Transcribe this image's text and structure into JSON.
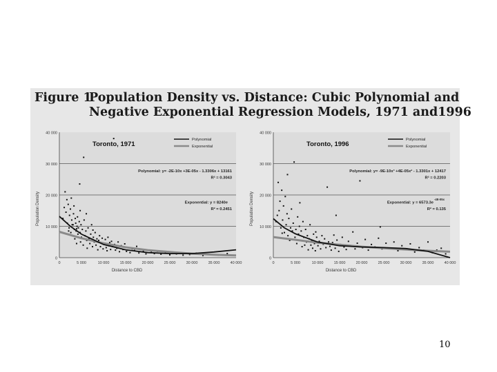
{
  "figure": {
    "label": "Figure 1",
    "title_line1": "Population Density vs. Distance: Cubic Polynomial and",
    "title_line2": "Negative Exponential Regression Models, 1971 and1996"
  },
  "slide_number": "10",
  "colors": {
    "panel_bg": "#e7e7e7",
    "plot_bg": "#dcdcdc",
    "points": "#111111",
    "polynomial_line": "#111111",
    "exponential_line": "#8a8a8a"
  },
  "chart_data": [
    {
      "type": "scatter",
      "title": "Toronto, 1971",
      "xlabel": "Distance to CBD",
      "ylabel": "Population Density",
      "xlim": [
        0,
        40000
      ],
      "ylim": [
        0,
        40000
      ],
      "x_ticks": [
        "0",
        "5 000",
        "10 000",
        "15 000",
        "20 000",
        "25 000",
        "30 000",
        "35 000",
        "40 000"
      ],
      "y_ticks": [
        "0",
        "10 000",
        "20 000",
        "30 000",
        "40 000"
      ],
      "ref_lines_y": [
        10000,
        20000,
        30000
      ],
      "legend": [
        "Polynomial",
        "Exponential"
      ],
      "legend_position": "top-right",
      "polynomial_equation": "Polynomial: y= -2E-10x +3E-05x - 1.3306x + 13161",
      "polynomial_r2": "R² = 0.3043",
      "exponential_equation": "Exponential: y = 8240e",
      "exponential_r2": "R² = 0.2451",
      "polynomial_curve": [
        [
          0,
          13161
        ],
        [
          2500,
          10000
        ],
        [
          5000,
          7500
        ],
        [
          10000,
          4200
        ],
        [
          15000,
          2500
        ],
        [
          20000,
          1600
        ],
        [
          25000,
          1300
        ],
        [
          30000,
          1300
        ],
        [
          35000,
          1800
        ],
        [
          40000,
          2500
        ]
      ],
      "exponential_curve": [
        [
          0,
          8240
        ],
        [
          5000,
          6200
        ],
        [
          10000,
          4600
        ],
        [
          15000,
          3300
        ],
        [
          20000,
          2400
        ],
        [
          25000,
          1800
        ],
        [
          30000,
          1300
        ],
        [
          35000,
          950
        ],
        [
          40000,
          700
        ]
      ],
      "points": [
        [
          800,
          12500
        ],
        [
          1100,
          16000
        ],
        [
          1300,
          21000
        ],
        [
          1500,
          14500
        ],
        [
          1700,
          18500
        ],
        [
          1800,
          11000
        ],
        [
          2000,
          17000
        ],
        [
          2200,
          9500
        ],
        [
          2300,
          13500
        ],
        [
          2500,
          15500
        ],
        [
          2600,
          8000
        ],
        [
          2700,
          19000
        ],
        [
          2800,
          12000
        ],
        [
          3000,
          7000
        ],
        [
          3100,
          10500
        ],
        [
          3200,
          14000
        ],
        [
          3300,
          16500
        ],
        [
          3400,
          9000
        ],
        [
          3500,
          6000
        ],
        [
          3600,
          12500
        ],
        [
          3700,
          11000
        ],
        [
          3800,
          8500
        ],
        [
          3900,
          4500
        ],
        [
          4000,
          10000
        ],
        [
          4100,
          13000
        ],
        [
          4200,
          7500
        ],
        [
          4300,
          9500
        ],
        [
          4400,
          6500
        ],
        [
          4500,
          11500
        ],
        [
          4600,
          23500
        ],
        [
          4700,
          8000
        ],
        [
          4800,
          5000
        ],
        [
          4900,
          10500
        ],
        [
          5000,
          6500
        ],
        [
          5200,
          9000
        ],
        [
          5400,
          4000
        ],
        [
          5600,
          12000
        ],
        [
          5800,
          7000
        ],
        [
          6000,
          8500
        ],
        [
          6200,
          5500
        ],
        [
          6300,
          3000
        ],
        [
          6500,
          9500
        ],
        [
          6700,
          6000
        ],
        [
          6900,
          4500
        ],
        [
          7100,
          7500
        ],
        [
          7300,
          10500
        ],
        [
          7500,
          3500
        ],
        [
          7700,
          6500
        ],
        [
          7900,
          5000
        ],
        [
          8100,
          8000
        ],
        [
          8300,
          4000
        ],
        [
          8500,
          6000
        ],
        [
          8700,
          2500
        ],
        [
          8900,
          5500
        ],
        [
          9100,
          7000
        ],
        [
          9300,
          3500
        ],
        [
          9500,
          4800
        ],
        [
          9700,
          6200
        ],
        [
          9900,
          2800
        ],
        [
          10200,
          4500
        ],
        [
          10400,
          5800
        ],
        [
          10600,
          3200
        ],
        [
          10800,
          2200
        ],
        [
          11000,
          6500
        ],
        [
          11200,
          3800
        ],
        [
          11400,
          4800
        ],
        [
          11600,
          2600
        ],
        [
          11800,
          5200
        ],
        [
          12000,
          3600
        ],
        [
          12300,
          38000
        ],
        [
          12500,
          4200
        ],
        [
          12700,
          2400
        ],
        [
          13000,
          3000
        ],
        [
          13300,
          5000
        ],
        [
          13600,
          1900
        ],
        [
          14000,
          3800
        ],
        [
          14400,
          2600
        ],
        [
          14800,
          4400
        ],
        [
          15200,
          2000
        ],
        [
          15600,
          3200
        ],
        [
          16000,
          1600
        ],
        [
          16500,
          2800
        ],
        [
          17000,
          2300
        ],
        [
          17500,
          3600
        ],
        [
          18000,
          1500
        ],
        [
          18500,
          2600
        ],
        [
          19000,
          2000
        ],
        [
          19600,
          1200
        ],
        [
          20200,
          2400
        ],
        [
          20800,
          1700
        ],
        [
          21500,
          1300
        ],
        [
          22200,
          2000
        ],
        [
          23000,
          1100
        ],
        [
          24000,
          1500
        ],
        [
          25000,
          900
        ],
        [
          26500,
          1200
        ],
        [
          28000,
          800
        ],
        [
          29500,
          1000
        ],
        [
          31000,
          1400
        ],
        [
          32500,
          700
        ],
        [
          34000,
          1000
        ],
        [
          36000,
          800
        ],
        [
          38000,
          1300
        ],
        [
          5500,
          32000
        ],
        [
          2100,
          8500
        ],
        [
          6100,
          14000
        ],
        [
          3900,
          9200
        ],
        [
          7600,
          8800
        ],
        [
          4700,
          15000
        ],
        [
          2900,
          10500
        ]
      ]
    },
    {
      "type": "scatter",
      "title": "Toronto, 1996",
      "xlabel": "Distance to CBD",
      "ylabel": "Population Density",
      "xlim": [
        0,
        40000
      ],
      "ylim": [
        0,
        40000
      ],
      "x_ticks": [
        "0",
        "5 000",
        "10 000",
        "15 000",
        "20 000",
        "25 000",
        "30 000",
        "35 000",
        "40 000"
      ],
      "y_ticks": [
        "0",
        "10 000",
        "20 000",
        "30 000",
        "40 000"
      ],
      "ref_lines_y": [
        10000,
        20000,
        30000
      ],
      "legend": [
        "Polynomial",
        "Exponential"
      ],
      "legend_position": "top-right",
      "polynomial_equation": "Polynomial: y= -9E-10x³ +4E-05x² - 1.3301x + 12417",
      "polynomial_r2": "R² = 0.2203",
      "exponential_equation": "Exponential: y = 6573.3e",
      "exponential_exponent": "-4E-05x",
      "exponential_r2": "R² = 0.135",
      "polynomial_curve": [
        [
          0,
          12417
        ],
        [
          2500,
          9500
        ],
        [
          5000,
          7600
        ],
        [
          10000,
          5000
        ],
        [
          15000,
          3800
        ],
        [
          20000,
          3400
        ],
        [
          25000,
          3200
        ],
        [
          30000,
          2900
        ],
        [
          35000,
          2000
        ],
        [
          40000,
          0
        ]
      ],
      "exponential_curve": [
        [
          0,
          6573
        ],
        [
          5000,
          5700
        ],
        [
          10000,
          4800
        ],
        [
          15000,
          4100
        ],
        [
          20000,
          3500
        ],
        [
          25000,
          3000
        ],
        [
          30000,
          2600
        ],
        [
          35000,
          2200
        ],
        [
          40000,
          1900
        ]
      ],
      "points": [
        [
          600,
          11500
        ],
        [
          900,
          13500
        ],
        [
          1100,
          24000
        ],
        [
          1300,
          15000
        ],
        [
          1500,
          18000
        ],
        [
          1700,
          9500
        ],
        [
          1900,
          21500
        ],
        [
          2100,
          12000
        ],
        [
          2300,
          16500
        ],
        [
          2500,
          8000
        ],
        [
          2700,
          19500
        ],
        [
          2900,
          10500
        ],
        [
          3100,
          14000
        ],
        [
          3300,
          7000
        ],
        [
          3500,
          12500
        ],
        [
          3700,
          5500
        ],
        [
          3900,
          9500
        ],
        [
          4100,
          15500
        ],
        [
          4300,
          8500
        ],
        [
          4500,
          11000
        ],
        [
          4700,
          30500
        ],
        [
          4900,
          6500
        ],
        [
          5100,
          9000
        ],
        [
          5300,
          4500
        ],
        [
          5500,
          13000
        ],
        [
          5700,
          7500
        ],
        [
          5900,
          10000
        ],
        [
          6100,
          5500
        ],
        [
          6300,
          8500
        ],
        [
          6500,
          3500
        ],
        [
          6700,
          11500
        ],
        [
          6900,
          6500
        ],
        [
          7100,
          4000
        ],
        [
          7300,
          9000
        ],
        [
          7500,
          5000
        ],
        [
          7700,
          7000
        ],
        [
          7900,
          2500
        ],
        [
          8100,
          6000
        ],
        [
          8300,
          10500
        ],
        [
          8500,
          4000
        ],
        [
          8700,
          5500
        ],
        [
          8900,
          3000
        ],
        [
          9100,
          7500
        ],
        [
          9300,
          4500
        ],
        [
          9500,
          2200
        ],
        [
          9800,
          6500
        ],
        [
          10100,
          3800
        ],
        [
          10400,
          5200
        ],
        [
          10700,
          2800
        ],
        [
          11000,
          7000
        ],
        [
          11300,
          4300
        ],
        [
          11600,
          6000
        ],
        [
          11900,
          3200
        ],
        [
          12200,
          22500
        ],
        [
          12500,
          5000
        ],
        [
          12800,
          3600
        ],
        [
          13100,
          2400
        ],
        [
          13400,
          4800
        ],
        [
          13700,
          7200
        ],
        [
          14000,
          3000
        ],
        [
          14400,
          5600
        ],
        [
          14800,
          2000
        ],
        [
          15200,
          4200
        ],
        [
          15600,
          6500
        ],
        [
          16000,
          3400
        ],
        [
          16500,
          2600
        ],
        [
          17000,
          5200
        ],
        [
          17500,
          3800
        ],
        [
          18000,
          8200
        ],
        [
          18500,
          2800
        ],
        [
          19000,
          4600
        ],
        [
          19600,
          24500
        ],
        [
          20200,
          3200
        ],
        [
          20800,
          5800
        ],
        [
          21500,
          2400
        ],
        [
          22200,
          4200
        ],
        [
          23000,
          3400
        ],
        [
          23800,
          6200
        ],
        [
          24600,
          2800
        ],
        [
          25500,
          4600
        ],
        [
          26400,
          3000
        ],
        [
          27300,
          5000
        ],
        [
          28200,
          2200
        ],
        [
          29100,
          3800
        ],
        [
          30000,
          2600
        ],
        [
          31000,
          4400
        ],
        [
          32000,
          1800
        ],
        [
          33000,
          3200
        ],
        [
          34000,
          2400
        ],
        [
          35000,
          5000
        ],
        [
          36000,
          1600
        ],
        [
          37000,
          2400
        ],
        [
          38000,
          3000
        ],
        [
          39000,
          1200
        ],
        [
          3200,
          26500
        ],
        [
          6000,
          17500
        ],
        [
          14200,
          13500
        ],
        [
          9600,
          8200
        ],
        [
          2000,
          7800
        ],
        [
          24200,
          9800
        ]
      ]
    }
  ]
}
